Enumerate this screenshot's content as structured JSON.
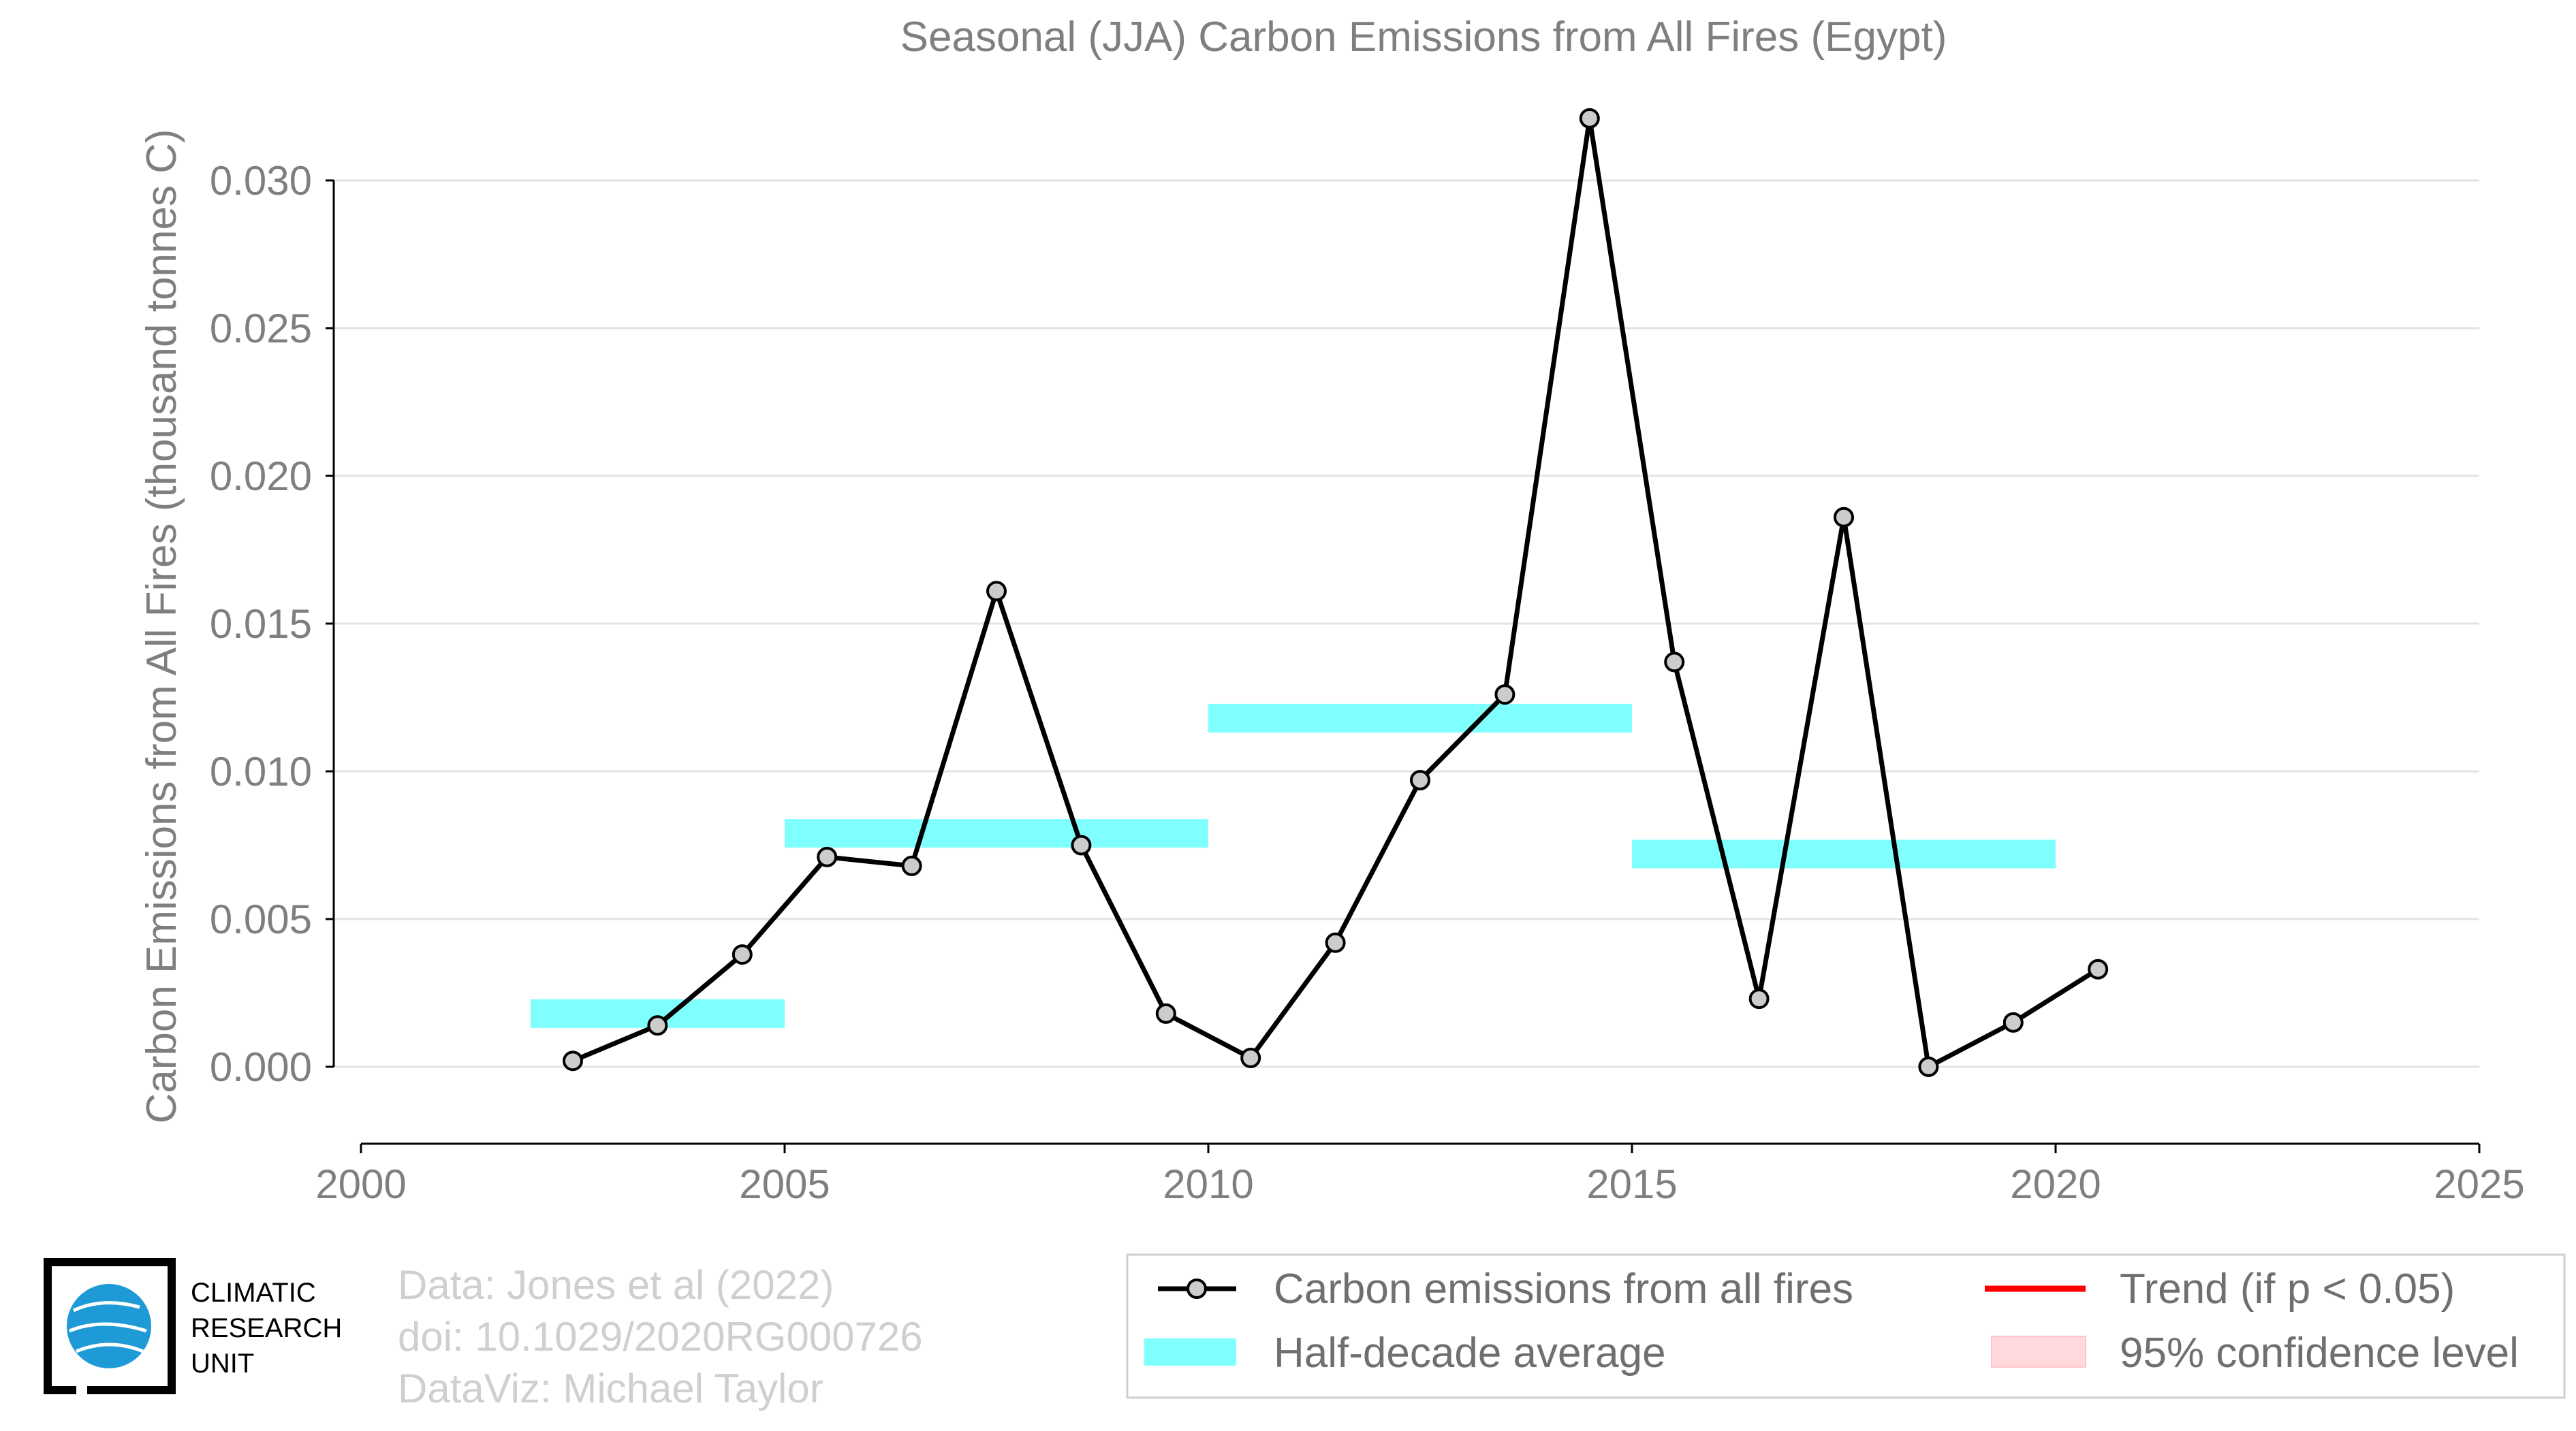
{
  "chart_data": {
    "type": "line",
    "title": "Seasonal (JJA) Carbon Emissions from All Fires (Egypt)",
    "xlabel": "",
    "ylabel": "Carbon Emissions from All Fires (thousand tonnes C)",
    "xlim": [
      2000,
      2025
    ],
    "ylim": [
      -0.0025,
      0.033
    ],
    "x_ticks": [
      "2000",
      "2005",
      "2010",
      "2015",
      "2020",
      "2025"
    ],
    "y_ticks": [
      "0.000",
      "0.005",
      "0.010",
      "0.015",
      "0.020",
      "0.025",
      "0.030"
    ],
    "grid": "horizontal",
    "series": [
      {
        "name": "Carbon emissions from all fires",
        "color": "#000000",
        "marker_fill": "#cccccc",
        "x": [
          2002.5,
          2003.5,
          2004.5,
          2005.5,
          2006.5,
          2007.5,
          2008.5,
          2009.5,
          2010.5,
          2011.5,
          2012.5,
          2013.5,
          2014.5,
          2015.5,
          2016.5,
          2017.5,
          2018.5,
          2019.5,
          2020.5
        ],
        "y": [
          0.0002,
          0.0014,
          0.0038,
          0.0071,
          0.0068,
          0.0161,
          0.0075,
          0.0018,
          0.0003,
          0.0042,
          0.0097,
          0.0126,
          0.0321,
          0.0137,
          0.0023,
          0.0186,
          0.0,
          0.0015,
          0.0033
        ]
      },
      {
        "name": "Half-decade average",
        "color": "#80ffff",
        "segments": [
          {
            "x_start": 2002,
            "x_end": 2005,
            "y": 0.0018
          },
          {
            "x_start": 2005,
            "x_end": 2010,
            "y": 0.0079
          },
          {
            "x_start": 2010,
            "x_end": 2015,
            "y": 0.0118
          },
          {
            "x_start": 2015,
            "x_end": 2020,
            "y": 0.0072
          }
        ]
      }
    ],
    "legend": {
      "position": "bottom-right",
      "entries": [
        {
          "label": "Carbon emissions from all fires",
          "symbol": "line-marker",
          "color": "#000000"
        },
        {
          "label": "Trend (if p < 0.05)",
          "symbol": "line",
          "color": "#ff0000"
        },
        {
          "label": "Half-decade average",
          "symbol": "band",
          "color": "#80ffff"
        },
        {
          "label": "95% confidence level",
          "symbol": "patch",
          "color": "#ffd9dc"
        }
      ]
    }
  },
  "credits": {
    "line1": "Data: Jones et al (2022)",
    "line2": "doi: 10.1029/2020RG000726",
    "line3": "DataViz: Michael Taylor"
  },
  "logo": {
    "line1": "CLIMATIC",
    "line2": "RESEARCH",
    "line3": "UNIT"
  }
}
